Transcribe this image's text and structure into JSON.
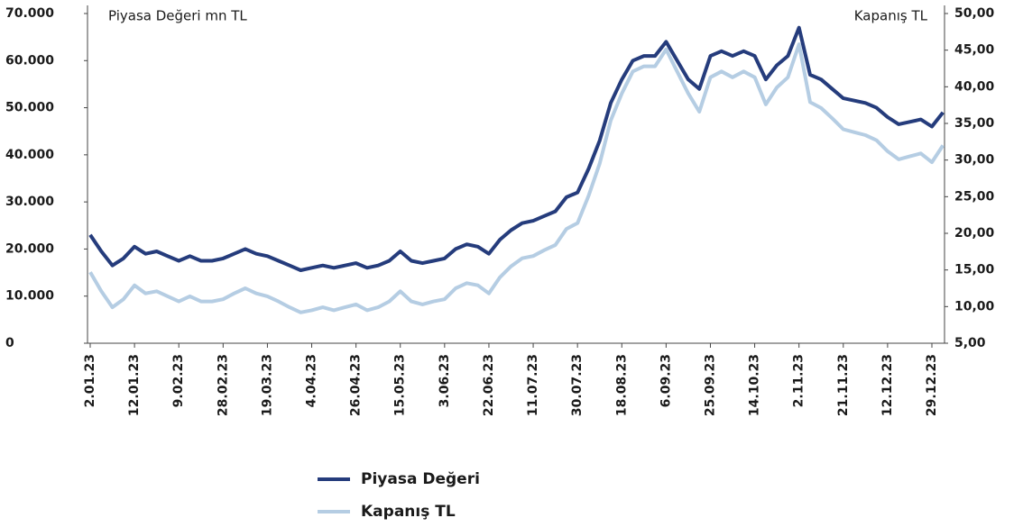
{
  "chart_data": {
    "type": "line",
    "y_axis_label": "Piyasa Değeri mn TL",
    "y2_axis_label": "Kapanış TL",
    "categories": [
      "2.01.23",
      null,
      null,
      null,
      "12.01.23",
      null,
      null,
      null,
      "9.02.23",
      null,
      null,
      null,
      "28.02.23",
      null,
      null,
      null,
      "19.03.23",
      null,
      null,
      null,
      "4.04.23",
      null,
      null,
      null,
      "26.04.23",
      null,
      null,
      null,
      "15.05.23",
      null,
      null,
      null,
      "3.06.23",
      null,
      null,
      null,
      "22.06.23",
      null,
      null,
      null,
      "11.07.23",
      null,
      null,
      null,
      "30.07.23",
      null,
      null,
      null,
      "18.08.23",
      null,
      null,
      null,
      "6.09.23",
      null,
      null,
      null,
      "25.09.23",
      null,
      null,
      null,
      "14.10.23",
      null,
      null,
      null,
      "2.11.23",
      null,
      null,
      null,
      "21.11.23",
      null,
      null,
      null,
      "12.12.23",
      null,
      null,
      null,
      "29.12.23",
      null
    ],
    "series": [
      {
        "name": "Piyasa Değeri",
        "color": "#253c7c",
        "values": [
          23000,
          19500,
          16500,
          18000,
          20500,
          19000,
          19500,
          18500,
          17500,
          18500,
          17500,
          17500,
          18000,
          19000,
          20000,
          19000,
          18500,
          17500,
          16500,
          15500,
          16000,
          16500,
          16000,
          16500,
          17000,
          16000,
          16500,
          17500,
          19500,
          17500,
          17000,
          17500,
          18000,
          20000,
          21000,
          20500,
          19000,
          22000,
          24000,
          25500,
          26000,
          27000,
          28000,
          31000,
          32000,
          37000,
          43000,
          51000,
          56000,
          60000,
          61000,
          61000,
          64000,
          60000,
          56000,
          54000,
          61000,
          62000,
          61000,
          62000,
          61000,
          56000,
          59000,
          61000,
          67000,
          57000,
          56000,
          54000,
          52000,
          51500,
          51000,
          50000,
          48000,
          46500,
          47000,
          47500,
          46000,
          49000
        ]
      },
      {
        "name": "Kapanış TL",
        "color": "#b5cde3",
        "axis": "y2",
        "values": [
          14.7,
          12.1,
          9.9,
          11.0,
          12.9,
          11.8,
          12.1,
          11.4,
          10.7,
          11.4,
          10.7,
          10.7,
          11.0,
          11.8,
          12.5,
          11.8,
          11.4,
          10.7,
          9.9,
          9.2,
          9.5,
          9.9,
          9.5,
          9.9,
          10.3,
          9.5,
          9.9,
          10.7,
          12.1,
          10.7,
          10.3,
          10.7,
          11.0,
          12.5,
          13.2,
          12.9,
          11.8,
          14.0,
          15.5,
          16.6,
          16.9,
          17.7,
          18.4,
          20.6,
          21.4,
          25.1,
          29.5,
          35.4,
          39.1,
          42.1,
          42.8,
          42.8,
          45.1,
          42.1,
          39.1,
          36.6,
          41.3,
          42.1,
          41.3,
          42.1,
          41.3,
          37.6,
          39.9,
          41.3,
          45.8,
          37.9,
          37.1,
          35.7,
          34.2,
          33.8,
          33.4,
          32.7,
          31.2,
          30.1,
          30.5,
          30.9,
          29.7,
          32.0
        ]
      }
    ],
    "ylim": [
      0,
      70000
    ],
    "yticks": [
      0,
      {
        "value": 10000,
        "label": "10.000"
      },
      {
        "value": 20000,
        "label": "20.000"
      },
      {
        "value": 30000,
        "label": "30.000"
      },
      {
        "value": 40000,
        "label": "40.000"
      },
      {
        "value": 50000,
        "label": "50.000"
      },
      {
        "value": 60000,
        "label": "60.000"
      },
      {
        "value": 70000,
        "label": "70.000"
      }
    ],
    "y2lim": [
      5,
      50
    ],
    "y2ticks": [
      {
        "value": 5,
        "label": "5,00"
      },
      {
        "value": 10,
        "label": "10,00"
      },
      {
        "value": 15,
        "label": "15,00"
      },
      {
        "value": 20,
        "label": "20,00"
      },
      {
        "value": 25,
        "label": "25,00"
      },
      {
        "value": 30,
        "label": "30,00"
      },
      {
        "value": 35,
        "label": "35,00"
      },
      {
        "value": 40,
        "label": "40,00"
      },
      {
        "value": 45,
        "label": "45,00"
      },
      {
        "value": 50,
        "label": "50,00"
      }
    ],
    "legend": "bottom"
  }
}
